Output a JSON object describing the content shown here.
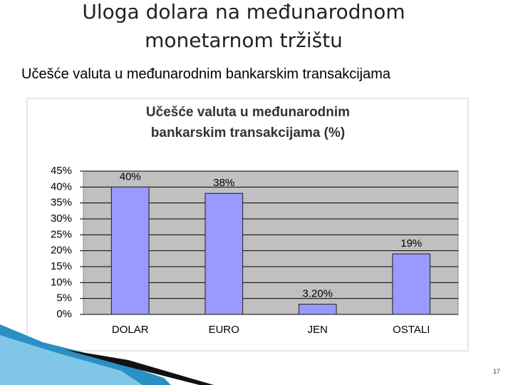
{
  "header": {
    "title": [
      "Uloga dolara na međunarodnom",
      "monetarnom tržištu"
    ],
    "subtitle": "Učešće valuta u međunarodnim bankarskim transakcijama"
  },
  "chart_data": {
    "type": "bar",
    "title": [
      "Učešće valuta u međunarodnim",
      "bankarskim transakcijama (%)"
    ],
    "categories": [
      "DOLAR",
      "EURO",
      "JEN",
      "OSTALI"
    ],
    "values": [
      40,
      38,
      3.2,
      19
    ],
    "value_labels": [
      "40%",
      "38%",
      "3.20%",
      "19%"
    ],
    "color": "#9999ff",
    "ylim": [
      0,
      45
    ],
    "yticks": [
      {
        "value": 0,
        "label": "0%"
      },
      {
        "value": 5,
        "label": "5%"
      },
      {
        "value": 10,
        "label": "10%"
      },
      {
        "value": 15,
        "label": "15%"
      },
      {
        "value": 20,
        "label": "20%"
      },
      {
        "value": 25,
        "label": "25%"
      },
      {
        "value": 30,
        "label": "30%"
      },
      {
        "value": 35,
        "label": "35%"
      },
      {
        "value": 40,
        "label": "40%"
      },
      {
        "value": 45,
        "label": "45%"
      }
    ],
    "grid": true
  },
  "footer": {
    "page": "17"
  }
}
